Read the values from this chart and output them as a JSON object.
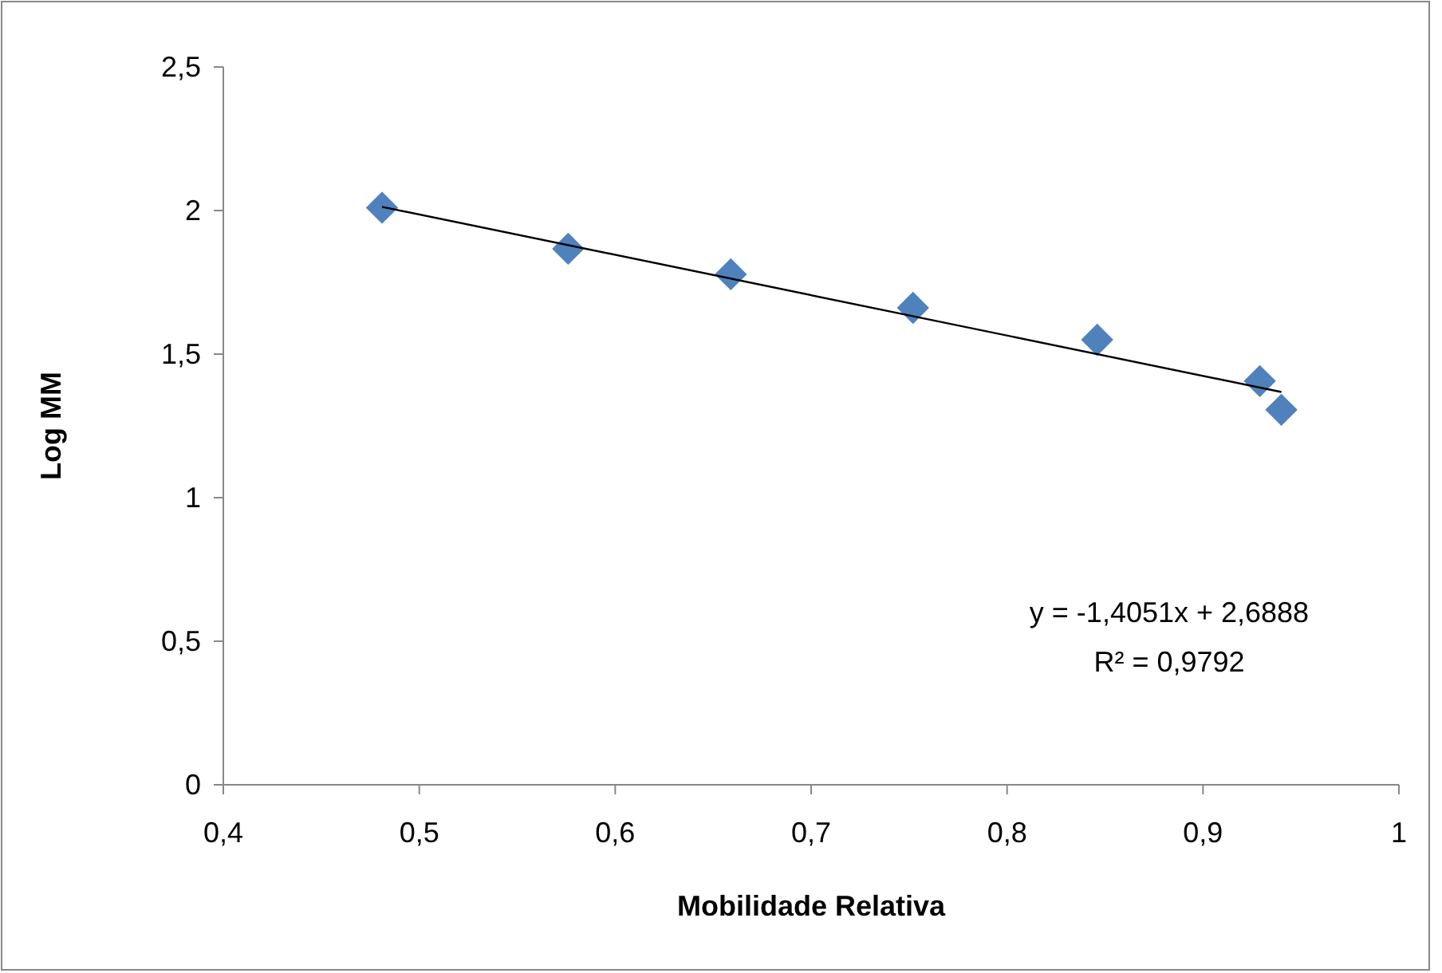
{
  "chart_data": {
    "type": "scatter",
    "xlabel": "Mobilidade Relativa",
    "ylabel": "Log MM",
    "xlim": [
      0.4,
      1
    ],
    "ylim": [
      0,
      2.5
    ],
    "xticks": [
      {
        "value": 0.4,
        "label": "0,4"
      },
      {
        "value": 0.5,
        "label": "0,5"
      },
      {
        "value": 0.6,
        "label": "0,6"
      },
      {
        "value": 0.7,
        "label": "0,7"
      },
      {
        "value": 0.8,
        "label": "0,8"
      },
      {
        "value": 0.9,
        "label": "0,9"
      },
      1
    ],
    "yticks": [
      0,
      {
        "value": 0.5,
        "label": "0,5"
      },
      1,
      {
        "value": 1.5,
        "label": "1,5"
      },
      2,
      {
        "value": 2.5,
        "label": "2,5"
      }
    ],
    "grid": false,
    "series": [
      {
        "color": "#4f81bd",
        "marker": "diamond",
        "x": [
          0.481,
          0.576,
          0.659,
          0.752,
          0.846,
          0.929,
          0.94
        ],
        "values": [
          2.01,
          1.867,
          1.778,
          1.661,
          1.55,
          1.406,
          1.306
        ]
      },
      {
        "type": "line",
        "color": "#000000",
        "marker": "none",
        "line_style": "solid",
        "x": [
          0.481,
          0.94
        ],
        "values": [
          2.013,
          1.368
        ]
      }
    ],
    "annotations": [
      "y = -1,4051x + 2,6888",
      "R² = 0,9792"
    ]
  }
}
